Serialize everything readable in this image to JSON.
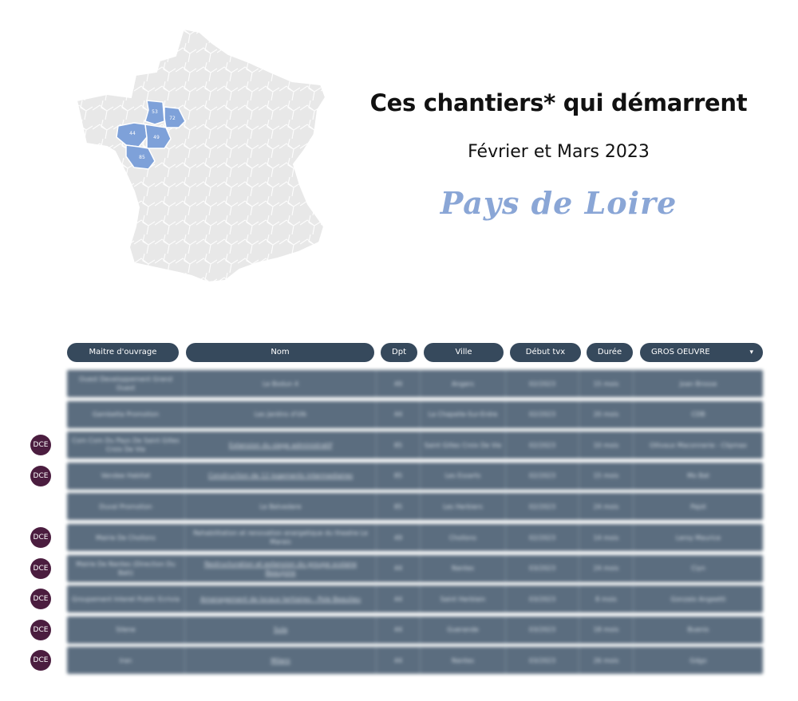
{
  "header": {
    "title": "Ces chantiers* qui démarrent",
    "subtitle": "Février et Mars 2023",
    "region": "Pays de Loire"
  },
  "map": {
    "departments": [
      "53",
      "72",
      "44",
      "49",
      "85"
    ],
    "highlight_color": "#7ea1d9",
    "base_color": "#e8e8e8"
  },
  "table": {
    "columns": [
      "Maitre d'ouvrage",
      "Nom",
      "Dpt",
      "Ville",
      "Début tvx",
      "Durée"
    ],
    "filter_value": "GROS OEUVRE",
    "dce_label": "DCE",
    "rows": [
      {
        "mo": "Ouest Developpement Grand Ouest",
        "nom": "Le Bodun 4",
        "dpt": "49",
        "ville": "Angers",
        "debut": "02/2023",
        "duree": "15 mois",
        "lot": "Joan Brosse",
        "dce": false,
        "link": false
      },
      {
        "mo": "Gambetta Promotion",
        "nom": "Les Jardins d'Ulk",
        "dpt": "44",
        "ville": "La Chapelle-Sur-Erdre",
        "debut": "02/2023",
        "duree": "20 mois",
        "lot": "CDB",
        "dce": false,
        "link": false
      },
      {
        "mo": "Com Com Du Pays De Saint Gilles Croix De Vie",
        "nom": "Extension du siege administratif",
        "dpt": "85",
        "ville": "Saint Gilles Croix De Vie",
        "debut": "02/2023",
        "duree": "10 mois",
        "lot": "Ollivaux Maconnerie - Clipmax",
        "dce": true,
        "link": true
      },
      {
        "mo": "Vendee Habitat",
        "nom": "Construction de 12 logements intermediaires",
        "dpt": "85",
        "ville": "Les Essarts",
        "debut": "02/2023",
        "duree": "15 mois",
        "lot": "Mo Bat",
        "dce": true,
        "link": true
      },
      {
        "mo": "Duval Promotion",
        "nom": "Le Belvedere",
        "dpt": "85",
        "ville": "Les Herbiers",
        "debut": "02/2023",
        "duree": "24 mois",
        "lot": "Pajot",
        "dce": false,
        "link": false
      },
      {
        "mo": "Mairie De Chollons",
        "nom": "Rehabilitation et renovation energetique du theatre Le Marais",
        "dpt": "49",
        "ville": "Chollons",
        "debut": "02/2023",
        "duree": "14 mois",
        "lot": "Leroy Maurice",
        "dce": true,
        "link": false
      },
      {
        "mo": "Mairie De Nantes (Direction Du Bati)",
        "nom": "Restructuration et extension du groupe scolaire Beaujoire",
        "dpt": "44",
        "ville": "Nantes",
        "debut": "03/2023",
        "duree": "24 mois",
        "lot": "Ciyn",
        "dce": true,
        "link": true
      },
      {
        "mo": "Groupement Interet Public Ecrivia",
        "nom": "Amenagement de locaux tertiaires - Pole Beaulieu",
        "dpt": "44",
        "ville": "Saint Herblain",
        "debut": "03/2023",
        "duree": "8 mois",
        "lot": "Gonzalo Angeetti",
        "dce": true,
        "link": true
      },
      {
        "mo": "Silene",
        "nom": "Sula",
        "dpt": "44",
        "ville": "Guerande",
        "debut": "03/2023",
        "duree": "18 mois",
        "lot": "Buenis",
        "dce": true,
        "link": true
      },
      {
        "mo": "Iran",
        "nom": "Milero",
        "dpt": "44",
        "ville": "Nantes",
        "debut": "03/2023",
        "duree": "26 mois",
        "lot": "Gdgo",
        "dce": true,
        "link": true
      }
    ]
  }
}
